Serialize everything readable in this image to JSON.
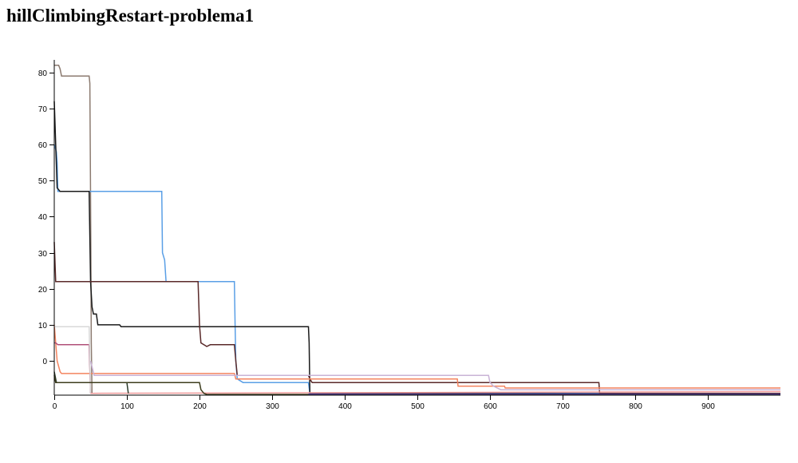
{
  "page": {
    "title": "hillClimbingRestart-problema1"
  },
  "chart_data": {
    "type": "line",
    "title": "hillClimbingRestart-problema1",
    "xlabel": "",
    "ylabel": "",
    "xlim": [
      0,
      1000
    ],
    "ylim": [
      -9.5,
      83.5
    ],
    "x_ticks": [
      0,
      100,
      200,
      300,
      400,
      500,
      600,
      700,
      800,
      900
    ],
    "y_ticks": [
      0,
      10,
      20,
      30,
      40,
      50,
      60,
      70,
      80
    ],
    "grid": false,
    "legend": "none",
    "series": [
      {
        "color": "#8c7b70",
        "points": [
          [
            0,
            82
          ],
          [
            6,
            82
          ],
          [
            8,
            81
          ],
          [
            10,
            79
          ],
          [
            48,
            79
          ],
          [
            49,
            77
          ],
          [
            50,
            45
          ],
          [
            51,
            5
          ],
          [
            52,
            -9
          ]
        ]
      },
      {
        "color": "#5a9fe6",
        "points": [
          [
            0,
            60
          ],
          [
            3,
            58
          ],
          [
            4,
            55
          ],
          [
            5,
            47
          ],
          [
            7,
            47
          ],
          [
            148,
            47
          ],
          [
            149,
            30
          ],
          [
            152,
            28
          ],
          [
            154,
            22
          ],
          [
            248,
            22
          ],
          [
            249,
            10
          ],
          [
            250,
            0
          ],
          [
            252,
            -5
          ],
          [
            260,
            -6
          ],
          [
            350,
            -6
          ],
          [
            352,
            -9
          ],
          [
            1000,
            -9
          ]
        ]
      },
      {
        "color": "#1a1a1a",
        "points": [
          [
            0,
            72
          ],
          [
            2,
            60
          ],
          [
            4,
            48
          ],
          [
            8,
            47
          ],
          [
            48,
            47
          ],
          [
            50,
            22
          ],
          [
            52,
            15
          ],
          [
            54,
            13
          ],
          [
            58,
            13
          ],
          [
            60,
            10
          ],
          [
            90,
            10
          ],
          [
            92,
            9.5
          ],
          [
            350,
            9.5
          ],
          [
            351,
            5
          ],
          [
            352,
            -9
          ],
          [
            1000,
            -9.2
          ]
        ]
      },
      {
        "color": "#5a2a2a",
        "points": [
          [
            0,
            33
          ],
          [
            2,
            22
          ],
          [
            10,
            22
          ],
          [
            198,
            22
          ],
          [
            200,
            10
          ],
          [
            202,
            5
          ],
          [
            210,
            4
          ],
          [
            215,
            4.5
          ],
          [
            248,
            4.5
          ],
          [
            250,
            0
          ],
          [
            252,
            -4
          ],
          [
            255,
            -4
          ],
          [
            350,
            -4
          ],
          [
            352,
            -5
          ],
          [
            355,
            -6
          ],
          [
            750,
            -6
          ],
          [
            751,
            -9
          ],
          [
            1000,
            -9
          ]
        ]
      },
      {
        "color": "#f4845f",
        "points": [
          [
            0,
            10
          ],
          [
            2,
            5
          ],
          [
            4,
            0
          ],
          [
            8,
            -3
          ],
          [
            10,
            -3.5
          ],
          [
            12,
            -3.5
          ],
          [
            248,
            -3.5
          ],
          [
            250,
            -5
          ],
          [
            555,
            -5
          ],
          [
            556,
            -7
          ],
          [
            620,
            -7
          ],
          [
            621,
            -7.5
          ],
          [
            1000,
            -7.5
          ]
        ]
      },
      {
        "color": "#b05078",
        "points": [
          [
            0,
            5
          ],
          [
            2,
            5
          ],
          [
            5,
            4.5
          ],
          [
            48,
            4.5
          ],
          [
            50,
            -9
          ]
        ]
      },
      {
        "color": "#d8d8d8",
        "points": [
          [
            0,
            9.5
          ],
          [
            48,
            9.5
          ],
          [
            50,
            -9
          ]
        ]
      },
      {
        "color": "#c9b3d6",
        "points": [
          [
            50,
            0
          ],
          [
            55,
            -4
          ],
          [
            60,
            -4
          ],
          [
            598,
            -4
          ],
          [
            600,
            -6
          ],
          [
            605,
            -7
          ],
          [
            615,
            -8
          ],
          [
            1000,
            -8
          ]
        ]
      },
      {
        "color": "#ef9a9a",
        "points": [
          [
            50,
            -9
          ],
          [
            1000,
            -8.5
          ]
        ]
      },
      {
        "color": "#2a3a2a",
        "points": [
          [
            0,
            -3
          ],
          [
            3,
            -6
          ],
          [
            100,
            -6
          ],
          [
            102,
            -9
          ]
        ]
      },
      {
        "color": "#3c3c1c",
        "points": [
          [
            0,
            -4
          ],
          [
            2,
            -6
          ],
          [
            200,
            -6
          ],
          [
            202,
            -8
          ],
          [
            206,
            -9
          ],
          [
            210,
            -9.3
          ],
          [
            1000,
            -9.3
          ]
        ]
      },
      {
        "color": "#4b3b8b",
        "points": [
          [
            350,
            -9.2
          ],
          [
            1000,
            -9.2
          ]
        ]
      }
    ]
  }
}
